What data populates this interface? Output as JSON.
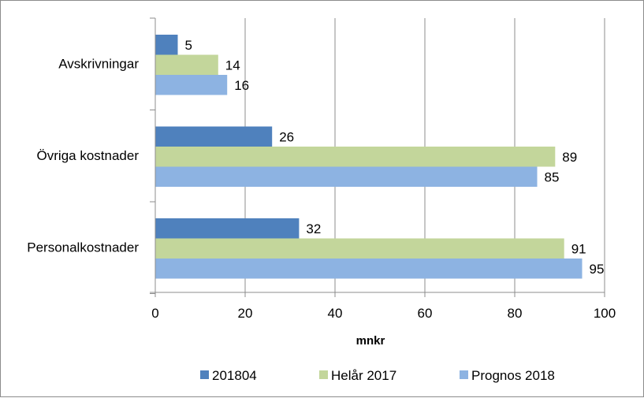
{
  "chart_data": {
    "type": "bar",
    "orientation": "horizontal",
    "title": "",
    "xlabel": "mnkr",
    "ylabel": "",
    "xlim": [
      0,
      100
    ],
    "xticks": [
      0,
      20,
      40,
      60,
      80,
      100
    ],
    "grid": true,
    "legend_position": "bottom",
    "categories": [
      "Avskrivningar",
      "Övriga kostnader",
      "Personalkostnader"
    ],
    "series": [
      {
        "name": "201804",
        "color": "#4f81bd",
        "values": [
          5,
          26,
          32
        ]
      },
      {
        "name": "Helår 2017",
        "color": "#c3d69b",
        "values": [
          14,
          89,
          91
        ]
      },
      {
        "name": "Prognos 2018",
        "color": "#8db3e2",
        "values": [
          16,
          85,
          95
        ]
      }
    ]
  }
}
